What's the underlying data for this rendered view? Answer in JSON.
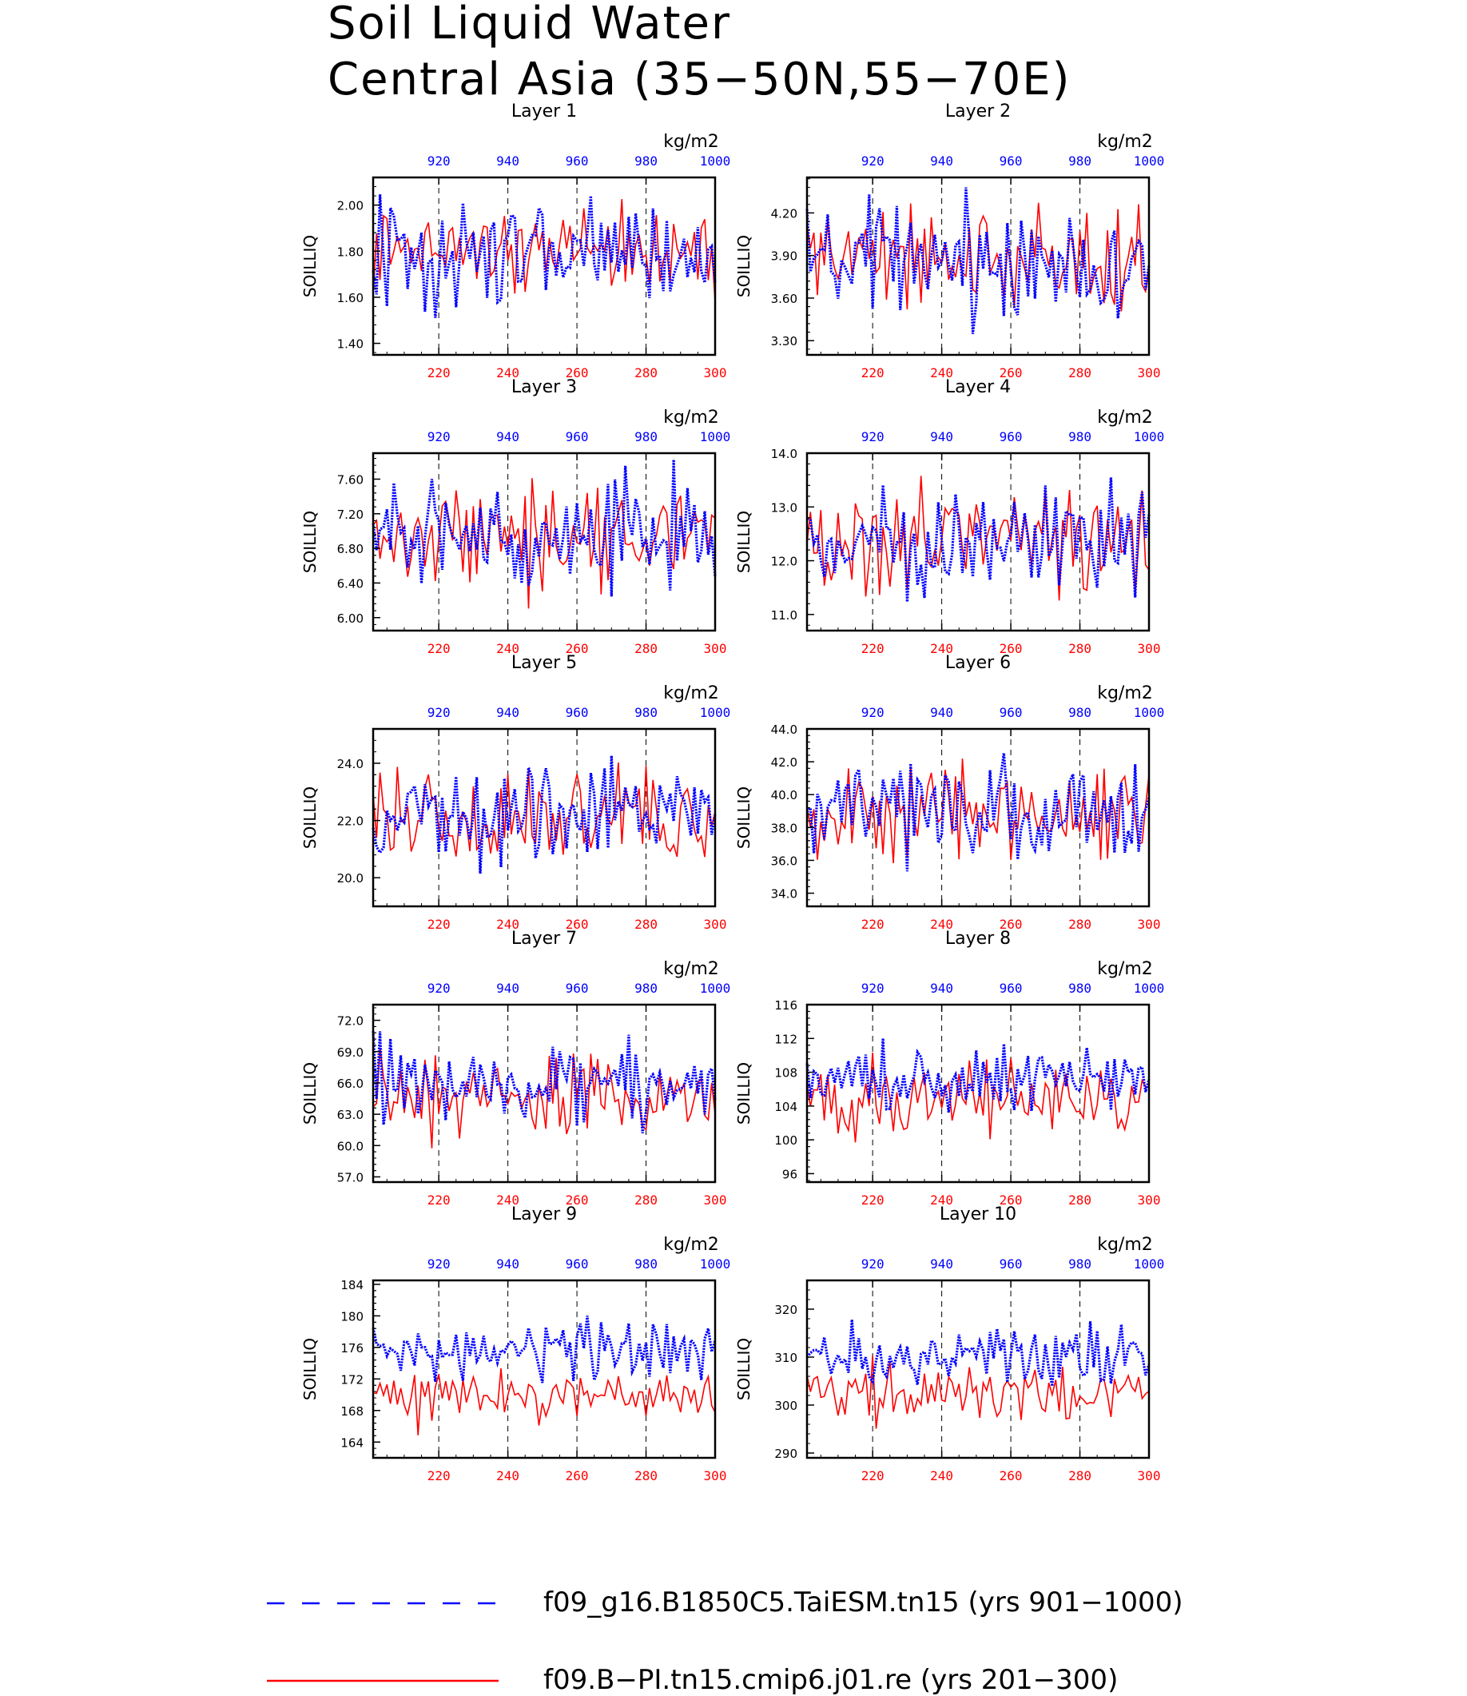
{
  "title_line1": "Soil Liquid Water",
  "title_line2": "Central Asia (35−50N,55−70E)",
  "units": "kg/m2",
  "ylabel": "SOILLIQ",
  "colors": {
    "series_a": "#0000ff",
    "series_b": "#ff0000",
    "axis": "#000000"
  },
  "bottom_axis": {
    "ticks": [
      220,
      240,
      260,
      280,
      300
    ],
    "range": [
      201,
      300
    ]
  },
  "top_axis": {
    "ticks": [
      920,
      940,
      960,
      980,
      1000
    ],
    "range": [
      901,
      1000
    ]
  },
  "legend": [
    {
      "label": "f09_g16.B1850C5.TaiESM.tn15 (yrs 901−1000)",
      "color": "#0000ff",
      "style": "dashed"
    },
    {
      "label": "f09.B−PI.tn15.cmip6.j01.re (yrs 201−300)",
      "color": "#ff0000",
      "style": "solid"
    }
  ],
  "chart_data": [
    {
      "type": "line",
      "title": "Layer 1",
      "ylim": [
        1.35,
        2.12
      ],
      "yticks": [
        1.4,
        1.6,
        1.8,
        2.0
      ],
      "ytick_labels": [
        "1.40",
        "1.60",
        "1.80",
        "2.00"
      ],
      "base_a": 1.78,
      "amp_a": 0.15,
      "base_b": 1.8,
      "amp_b": 0.13
    },
    {
      "type": "line",
      "title": "Layer 2",
      "ylim": [
        3.2,
        4.45
      ],
      "yticks": [
        3.3,
        3.6,
        3.9,
        4.2
      ],
      "ytick_labels": [
        "3.30",
        "3.60",
        "3.90",
        "4.20"
      ],
      "base_a": 3.85,
      "amp_a": 0.25,
      "base_b": 3.88,
      "amp_b": 0.22
    },
    {
      "type": "line",
      "title": "Layer 3",
      "ylim": [
        5.85,
        7.9
      ],
      "yticks": [
        6.0,
        6.4,
        6.8,
        7.2,
        7.6
      ],
      "ytick_labels": [
        "6.00",
        "6.40",
        "6.80",
        "7.20",
        "7.60"
      ],
      "base_a": 6.95,
      "amp_a": 0.4,
      "base_b": 6.9,
      "amp_b": 0.38
    },
    {
      "type": "line",
      "title": "Layer 4",
      "ylim": [
        10.7,
        14.0
      ],
      "yticks": [
        11.0,
        12.0,
        13.0,
        14.0
      ],
      "ytick_labels": [
        "11.0",
        "12.0",
        "13.0",
        "14.0"
      ],
      "base_a": 12.3,
      "amp_a": 0.65,
      "base_b": 12.4,
      "amp_b": 0.6
    },
    {
      "type": "line",
      "title": "Layer 5",
      "ylim": [
        19.0,
        25.2
      ],
      "yticks": [
        20.0,
        22.0,
        24.0
      ],
      "ytick_labels": [
        "20.0",
        "22.0",
        "24.0"
      ],
      "base_a": 22.2,
      "amp_a": 1.1,
      "base_b": 22.1,
      "amp_b": 1.0
    },
    {
      "type": "line",
      "title": "Layer 6",
      "ylim": [
        33.2,
        44.0
      ],
      "yticks": [
        34.0,
        36.0,
        38.0,
        40.0,
        42.0,
        44.0
      ],
      "ytick_labels": [
        "34.0",
        "36.0",
        "38.0",
        "40.0",
        "42.0",
        "44.0"
      ],
      "base_a": 39.0,
      "amp_a": 1.9,
      "base_b": 38.8,
      "amp_b": 1.8
    },
    {
      "type": "line",
      "title": "Layer 7",
      "ylim": [
        56.5,
        73.5
      ],
      "yticks": [
        57.0,
        60.0,
        63.0,
        66.0,
        69.0,
        72.0
      ],
      "ytick_labels": [
        "57.0",
        "60.0",
        "63.0",
        "66.0",
        "69.0",
        "72.0"
      ],
      "base_a": 66.0,
      "amp_a": 2.6,
      "base_b": 64.5,
      "amp_b": 2.6
    },
    {
      "type": "line",
      "title": "Layer 8",
      "ylim": [
        95.0,
        116.0
      ],
      "yticks": [
        96,
        100,
        104,
        108,
        112,
        116
      ],
      "ytick_labels": [
        "96",
        "100",
        "104",
        "108",
        "112",
        "116"
      ],
      "base_a": 107.0,
      "amp_a": 2.7,
      "base_b": 104.5,
      "amp_b": 2.8
    },
    {
      "type": "line",
      "title": "Layer 9",
      "ylim": [
        162.0,
        184.5
      ],
      "yticks": [
        164,
        168,
        172,
        176,
        180,
        184
      ],
      "ytick_labels": [
        "164",
        "168",
        "172",
        "176",
        "180",
        "184"
      ],
      "base_a": 175.5,
      "amp_a": 2.6,
      "base_b": 170.0,
      "amp_b": 2.2
    },
    {
      "type": "line",
      "title": "Layer 10",
      "ylim": [
        289.0,
        326.0
      ],
      "yticks": [
        290,
        300,
        310,
        320
      ],
      "ytick_labels": [
        "290",
        "300",
        "310",
        "320"
      ],
      "base_a": 310.0,
      "amp_a": 4.5,
      "base_b": 302.5,
      "amp_b": 3.5
    }
  ]
}
